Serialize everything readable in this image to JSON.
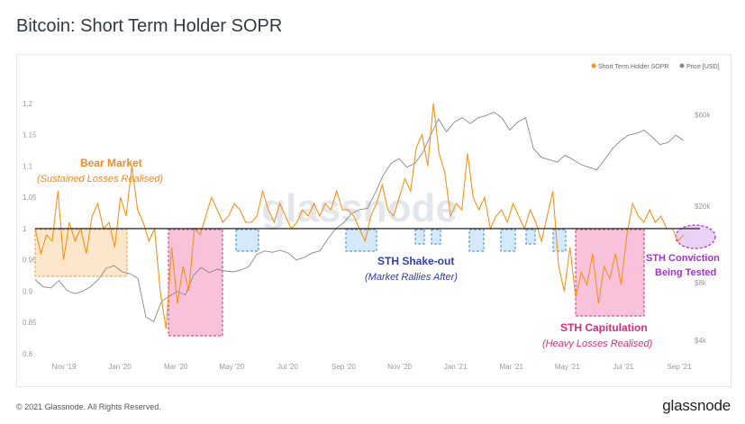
{
  "title": "Bitcoin: Short Term Holder SOPR",
  "footer": {
    "copyright": "© 2021 Glassnode. All Rights Reserved.",
    "brand": "glassnode"
  },
  "watermark": "glassnode",
  "chart_data": {
    "type": "line",
    "legend_position": "top-right",
    "grid": false,
    "x_ticks": [
      "Nov '19",
      "Jan '20",
      "Mar '20",
      "May '20",
      "Jul '20",
      "Sep '20",
      "Nov '20",
      "Jan '21",
      "Mar '21",
      "May '21",
      "Jul '21",
      "Sep '21"
    ],
    "y_left": {
      "ticks": [
        "1.2",
        "1.15",
        "1.1",
        "1.05",
        "1",
        "0.95",
        "0.9",
        "0.85",
        "0.8"
      ],
      "range": [
        0.8,
        1.22
      ]
    },
    "y_right": {
      "ticks": [
        "$60k",
        "$20k",
        "$8k",
        "$4k"
      ],
      "scale": "log"
    },
    "reference_line": 1,
    "series": [
      {
        "name": "Short Term Holder SOPR",
        "color": "#f7931a",
        "values": [
          1.0,
          0.96,
          0.99,
          0.98,
          1.06,
          0.95,
          1.01,
          0.98,
          1.0,
          0.96,
          1.02,
          1.04,
          1.0,
          1.01,
          0.97,
          1.05,
          1.02,
          1.1,
          1.03,
          1.01,
          0.98,
          1.0,
          0.9,
          0.84,
          0.97,
          0.88,
          0.94,
          0.9,
          1.0,
          0.99,
          1.02,
          1.05,
          1.03,
          1.01,
          1.02,
          1.04,
          1.03,
          1.01,
          1.01,
          1.02,
          1.06,
          1.03,
          1.01,
          1.04,
          1.02,
          1.0,
          1.01,
          1.03,
          1.02,
          1.04,
          1.02,
          1.04,
          1.03,
          1.06,
          1.03,
          1.03,
          1.02,
          1.0,
          0.98,
          1.02,
          1.04,
          1.07,
          1.03,
          1.02,
          1.05,
          1.08,
          1.06,
          1.13,
          1.15,
          1.1,
          1.2,
          1.12,
          1.09,
          1.02,
          1.04,
          1.03,
          1.12,
          1.05,
          1.03,
          1.05,
          1.0,
          1.02,
          1.03,
          1.01,
          1.04,
          1.02,
          1.0,
          1.03,
          1.01,
          0.98,
          1.02,
          1.06,
          0.94,
          0.9,
          0.97,
          0.89,
          0.93,
          0.91,
          0.96,
          0.88,
          0.94,
          0.92,
          0.96,
          0.91,
          0.99,
          1.04,
          1.02,
          1.01,
          1.03,
          1.01,
          1.02,
          1.0,
          1.0,
          0.98,
          0.99
        ],
        "note": "values sampled approximately at even time intervals from Oct 2019 to Sep 2021"
      },
      {
        "name": "Price [USD]",
        "color": "#888888",
        "values": [
          8300,
          7600,
          7500,
          8200,
          7300,
          7000,
          7200,
          7600,
          8300,
          9500,
          9800,
          9100,
          8900,
          8400,
          5300,
          5000,
          6400,
          6800,
          7200,
          6900,
          8700,
          9600,
          9000,
          9400,
          9200,
          9100,
          9300,
          9700,
          11200,
          11700,
          11500,
          11800,
          11400,
          10500,
          10800,
          11400,
          11700,
          13500,
          15300,
          16400,
          18300,
          19200,
          19500,
          23500,
          29000,
          33500,
          35500,
          32000,
          33500,
          38000,
          47000,
          57000,
          49000,
          55000,
          58000,
          54000,
          58000,
          59500,
          62000,
          58000,
          50000,
          55000,
          58000,
          40000,
          36000,
          35000,
          34000,
          37000,
          35000,
          33000,
          32000,
          31000,
          35000,
          40000,
          44000,
          47000,
          48000,
          50000,
          46000,
          42000,
          43000,
          47000,
          44000
        ],
        "note": "approximate price trajectory sampled across the same period"
      }
    ],
    "annotations": [
      {
        "label": "Bear Market",
        "sublabel": "(Sustained Losses Realised)",
        "color": "#f08a24"
      },
      {
        "label": "STH Shake-out",
        "sublabel": "(Market Rallies After)",
        "color": "#2f3fb0"
      },
      {
        "label": "STH Capitulation",
        "sublabel": "(Heavy Losses Realised)",
        "color": "#e0297a"
      },
      {
        "label": "STH Conviction",
        "sublabel": "Being Tested",
        "color": "#a62fdc"
      }
    ]
  }
}
